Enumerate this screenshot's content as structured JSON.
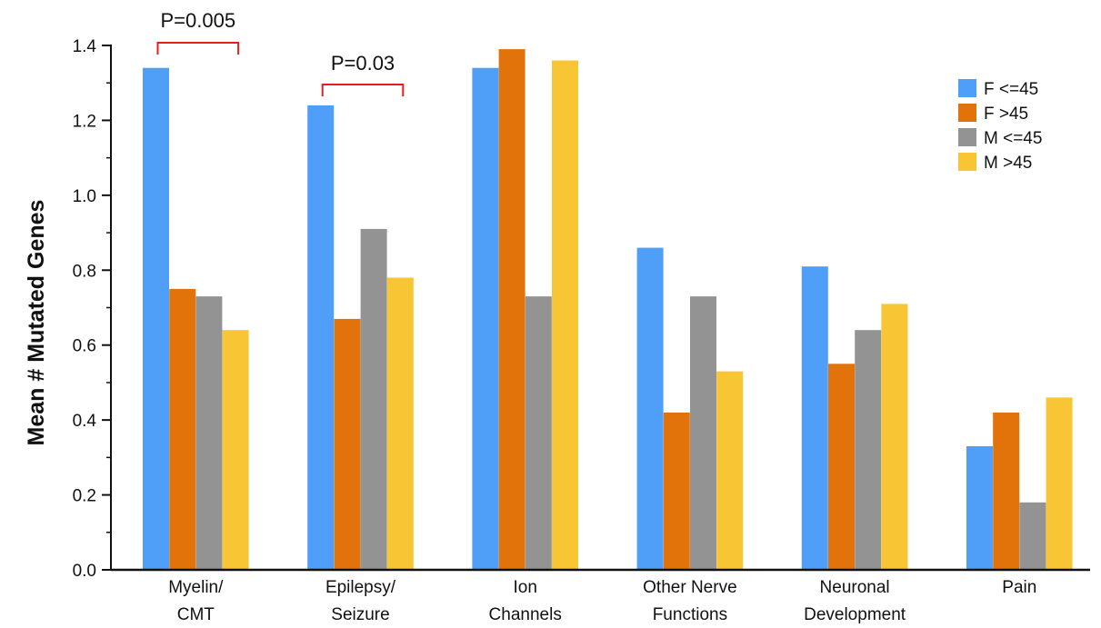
{
  "chart_data": {
    "type": "bar",
    "title": "",
    "xlabel": "",
    "ylabel": "Mean # Mutated Genes",
    "ylim": [
      0,
      1.4
    ],
    "yticks": [
      "0.0",
      "0.2",
      "0.4",
      "0.6",
      "0.8",
      "1.0",
      "1.2",
      "1.4"
    ],
    "yticks_values": [
      0,
      0.2,
      0.4,
      0.6,
      0.8,
      1.0,
      1.2,
      1.4
    ],
    "categories": [
      [
        "Myelin/",
        "CMT"
      ],
      [
        "Epilepsy/",
        "Seizure"
      ],
      [
        "Ion",
        "Channels"
      ],
      [
        "Other Nerve",
        "Functions"
      ],
      [
        "Neuronal",
        "Development"
      ],
      [
        "Pain"
      ]
    ],
    "series": [
      {
        "name": "F <=45",
        "color": "#4f9ef8",
        "values": [
          1.34,
          1.24,
          1.34,
          0.86,
          0.81,
          0.33
        ]
      },
      {
        "name": "F >45",
        "color": "#e2730b",
        "values": [
          0.75,
          0.67,
          1.39,
          0.42,
          0.55,
          0.42
        ]
      },
      {
        "name": "M <=45",
        "color": "#939393",
        "values": [
          0.73,
          0.91,
          0.73,
          0.73,
          0.64,
          0.18
        ]
      },
      {
        "name": "M >45",
        "color": "#f8c535",
        "values": [
          0.64,
          0.78,
          1.36,
          0.53,
          0.71,
          0.46
        ]
      }
    ],
    "legend_position": "top-right",
    "grid": false,
    "annotations": [
      {
        "text": "P=0.005",
        "category_index": 0,
        "bracket_color": "#e0201b"
      },
      {
        "text": "P=0.03",
        "category_index": 1,
        "bracket_color": "#e0201b"
      }
    ]
  }
}
